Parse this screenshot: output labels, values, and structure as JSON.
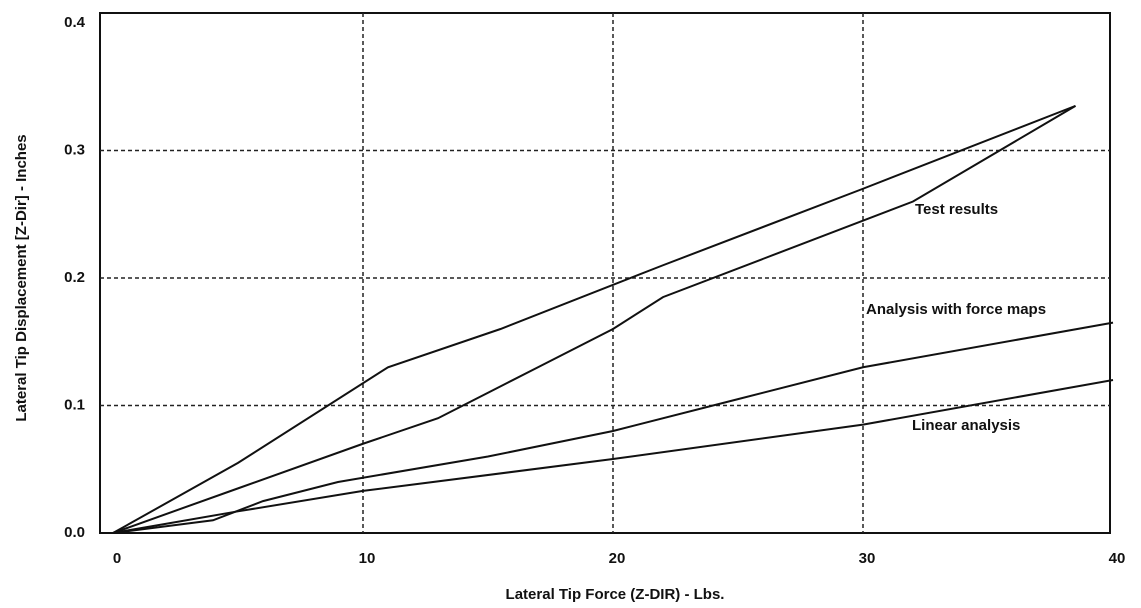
{
  "chart_data": {
    "type": "line",
    "xlabel": "Lateral Tip Force (Z-DIR) - Lbs.",
    "ylabel": "Lateral Tip Displacement [Z-Dir] - Inches",
    "xlim": [
      0,
      40
    ],
    "xticks": [
      0,
      10,
      20,
      30,
      40
    ],
    "ylim": [
      0,
      0.4
    ],
    "yticks": [
      {
        "value": 0,
        "label": "0.0"
      },
      0.1,
      0.2,
      0.3,
      0.4
    ],
    "grid": true,
    "annotations": [
      "Test results",
      "Analysis with force maps",
      "Linear analysis"
    ],
    "series": [
      {
        "color": "#111111",
        "x": [
          0,
          5,
          11,
          15.5,
          22,
          30,
          38.5
        ],
        "values": [
          0,
          0.055,
          0.13,
          0.16,
          0.21,
          0.27,
          0.335
        ]
      },
      {
        "color": "#111111",
        "x": [
          0,
          5,
          10,
          13,
          15,
          17,
          20,
          22,
          26,
          32,
          38.5
        ],
        "values": [
          0,
          0.035,
          0.07,
          0.09,
          0.11,
          0.13,
          0.16,
          0.185,
          0.215,
          0.26,
          0.335
        ]
      },
      {
        "color": "#111111",
        "x": [
          0,
          4,
          6,
          9,
          15,
          20,
          25,
          30,
          40
        ],
        "values": [
          0,
          0.01,
          0.025,
          0.04,
          0.06,
          0.08,
          0.105,
          0.13,
          0.165
        ]
      },
      {
        "color": "#111111",
        "x": [
          0,
          5,
          10,
          20,
          30,
          40
        ],
        "values": [
          0,
          0.017,
          0.033,
          0.058,
          0.085,
          0.12
        ]
      }
    ]
  }
}
